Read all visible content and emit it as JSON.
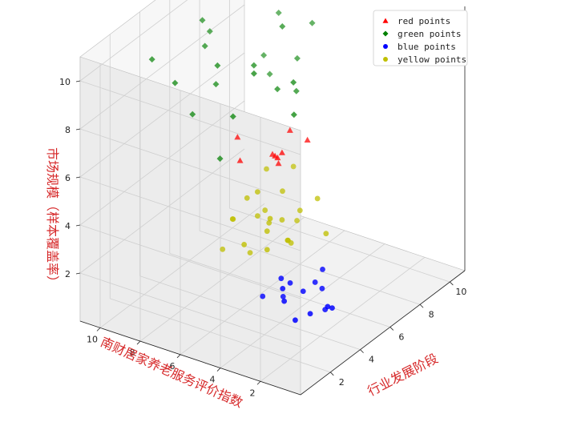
{
  "chart_data": {
    "type": "scatter3d",
    "title": "",
    "xlabel": "行业发展阶段",
    "ylabel": "南财居家养老服务评价指数",
    "zlabel": "市场规模（样本覆盖率）",
    "xlim": [
      0,
      11
    ],
    "ylim": [
      0,
      11
    ],
    "zlim": [
      0,
      11
    ],
    "xticks": [
      2,
      4,
      6,
      8,
      10
    ],
    "yticks": [
      2,
      4,
      6,
      8,
      10
    ],
    "zticks": [
      2,
      4,
      6,
      8,
      10
    ],
    "grid": true,
    "legend_position": "top-right",
    "series": [
      {
        "name": "red points",
        "color": "#ff0000",
        "marker": "triangle",
        "points": [
          [
            4.5,
            4.5,
            6.5
          ],
          [
            4,
            6,
            6.2
          ],
          [
            5,
            5,
            6.2
          ],
          [
            6,
            5,
            6.8
          ],
          [
            5.2,
            4.8,
            6.3
          ],
          [
            6.5,
            4.5,
            6.3
          ],
          [
            5.5,
            5.5,
            5.9
          ],
          [
            4.5,
            6.5,
            6.8
          ],
          [
            5.5,
            5.2,
            5.6
          ]
        ]
      },
      {
        "name": "green points",
        "color": "#008000",
        "marker": "diamond",
        "points": [
          [
            3.0,
            8.5,
            9.2
          ],
          [
            2.8,
            9.5,
            10.0
          ],
          [
            3.5,
            8.0,
            7.8
          ],
          [
            6.0,
            9.0,
            9.8
          ],
          [
            5.5,
            9.0,
            10.5
          ],
          [
            4.8,
            7.8,
            8.5
          ],
          [
            8.5,
            9.0,
            10.2
          ],
          [
            8.0,
            8.5,
            10.5
          ],
          [
            9.0,
            7.8,
            9.5
          ],
          [
            8.5,
            6.5,
            8.2
          ],
          [
            7.5,
            5.8,
            7.5
          ],
          [
            6.5,
            6.0,
            8.0
          ],
          [
            6.0,
            6.8,
            9.0
          ],
          [
            5.2,
            6.2,
            9.2
          ],
          [
            6.5,
            5.2,
            8.5
          ],
          [
            7.5,
            6.5,
            10.0
          ],
          [
            8.0,
            7.8,
            8.2
          ],
          [
            4.5,
            7.5,
            9.5
          ],
          [
            5.0,
            8.5,
            9.8
          ],
          [
            4.2,
            6.5,
            7.8
          ],
          [
            6.0,
            4.8,
            7.5
          ],
          [
            4.0,
            7.0,
            6.0
          ],
          [
            9.5,
            6.5,
            9.2
          ],
          [
            8.0,
            7.5,
            7.5
          ]
        ]
      },
      {
        "name": "blue points",
        "color": "#0000ff",
        "marker": "circle",
        "points": [
          [
            3.5,
            3.5,
            1.8
          ],
          [
            4.2,
            3.0,
            1.5
          ],
          [
            4.5,
            2.0,
            1.0
          ],
          [
            3.8,
            3.8,
            2.0
          ],
          [
            5.0,
            3.0,
            1.5
          ],
          [
            4.0,
            2.5,
            0.8
          ],
          [
            3.2,
            3.2,
            1.5
          ],
          [
            5.2,
            2.8,
            1.2
          ],
          [
            4.8,
            2.0,
            0.8
          ],
          [
            3.5,
            4.5,
            1.2
          ],
          [
            4.0,
            3.5,
            1.8
          ],
          [
            5.5,
            3.0,
            1.8
          ],
          [
            3.0,
            2.5,
            1.0
          ],
          [
            4.2,
            4.0,
            1.0
          ],
          [
            5.0,
            2.5,
            0.5
          ]
        ]
      },
      {
        "name": "yellow points",
        "color": "#bfbf00",
        "marker": "circle",
        "points": [
          [
            4.0,
            4.5,
            4.2
          ],
          [
            4.5,
            5.5,
            3.8
          ],
          [
            3.5,
            6.0,
            4.0
          ],
          [
            4.5,
            4.0,
            3.2
          ],
          [
            5.5,
            5.0,
            4.5
          ],
          [
            4.5,
            5.5,
            4.8
          ],
          [
            5.2,
            4.8,
            3.5
          ],
          [
            3.8,
            4.5,
            3.0
          ],
          [
            6.0,
            4.5,
            3.6
          ],
          [
            4.0,
            5.5,
            2.5
          ],
          [
            3.2,
            5.2,
            3.3
          ],
          [
            5.0,
            5.5,
            3.8
          ],
          [
            6.5,
            4.0,
            4.0
          ],
          [
            4.8,
            4.2,
            3.0
          ],
          [
            6.0,
            3.2,
            3.0
          ],
          [
            3.5,
            6.5,
            2.6
          ],
          [
            5.0,
            4.2,
            2.8
          ],
          [
            4.2,
            5.8,
            4.6
          ],
          [
            6.2,
            4.8,
            3.0
          ],
          [
            4.6,
            5.0,
            3.6
          ],
          [
            3.8,
            6.2,
            3.8
          ],
          [
            5.5,
            5.8,
            5.2
          ],
          [
            6.5,
            5.2,
            5.0
          ],
          [
            4.2,
            4.8,
            3.5
          ]
        ]
      }
    ]
  }
}
